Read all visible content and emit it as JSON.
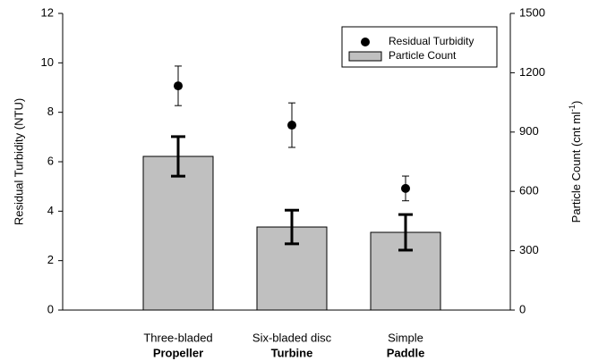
{
  "chart_data": {
    "type": "combo",
    "categories": [
      [
        "Three-bladed",
        "Propeller"
      ],
      [
        "Six-bladed disc",
        "Turbine"
      ],
      [
        "Simple",
        "Paddle"
      ]
    ],
    "ylabel": "Residual Turbidity (NTU)",
    "y2label": {
      "before": "Particle Count (cnt ml",
      "sup": "-1",
      "after": ")"
    },
    "ylim": [
      0,
      12
    ],
    "yticks": [
      0,
      2,
      4,
      6,
      8,
      10,
      12
    ],
    "y2lim": [
      0,
      1500
    ],
    "y2ticks": [
      0,
      300,
      600,
      900,
      1200,
      1500
    ],
    "legend": "upper right",
    "series": [
      {
        "name": "Residual Turbidity",
        "type": "scatter",
        "color": "#000000",
        "values": [
          9.07,
          7.48,
          4.92
        ],
        "errors": [
          0.8,
          0.9,
          0.5
        ]
      },
      {
        "name": "Particle Count",
        "type": "bar",
        "axis": "y2",
        "color": "#c0c0c0",
        "values": [
          777,
          420,
          393
        ],
        "errors": [
          100,
          85,
          90
        ]
      }
    ]
  }
}
